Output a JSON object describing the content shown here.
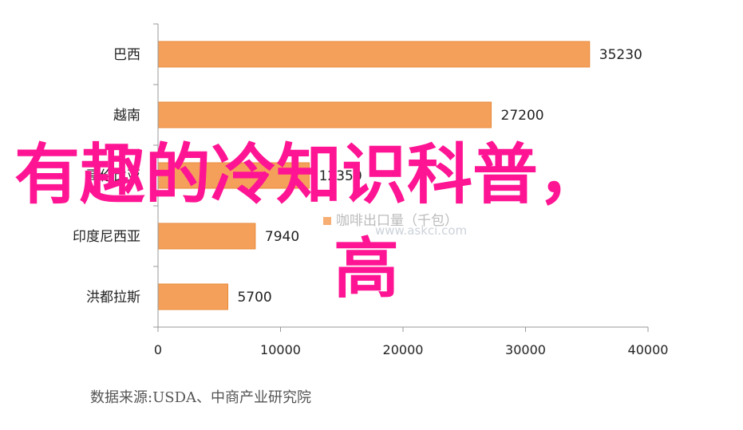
{
  "chart_data": {
    "type": "bar",
    "orientation": "horizontal",
    "categories": [
      "巴西",
      "越南",
      "哥伦比亚",
      "印度尼西亚",
      "洪都拉斯"
    ],
    "values": [
      35230,
      27200,
      12350,
      7940,
      5700
    ],
    "data_labels": [
      "35230",
      "27200",
      "12350",
      "7940",
      "5700"
    ],
    "xlim": [
      0,
      40000
    ],
    "x_ticks": [
      "0",
      "10000",
      "20000",
      "30000",
      "40000"
    ],
    "legend": "咖啡出口量（千包）",
    "grid": false
  },
  "colors": {
    "bar": "#f5a05a",
    "bar_edge": "#e8893a",
    "overlay_text": "#ff1493"
  },
  "overlay": {
    "line1": "有趣的冷知识科普，",
    "line2": "高"
  },
  "watermark": {
    "url": "www.askci.com"
  },
  "source": "数据来源:USDA、中商产业研究院"
}
